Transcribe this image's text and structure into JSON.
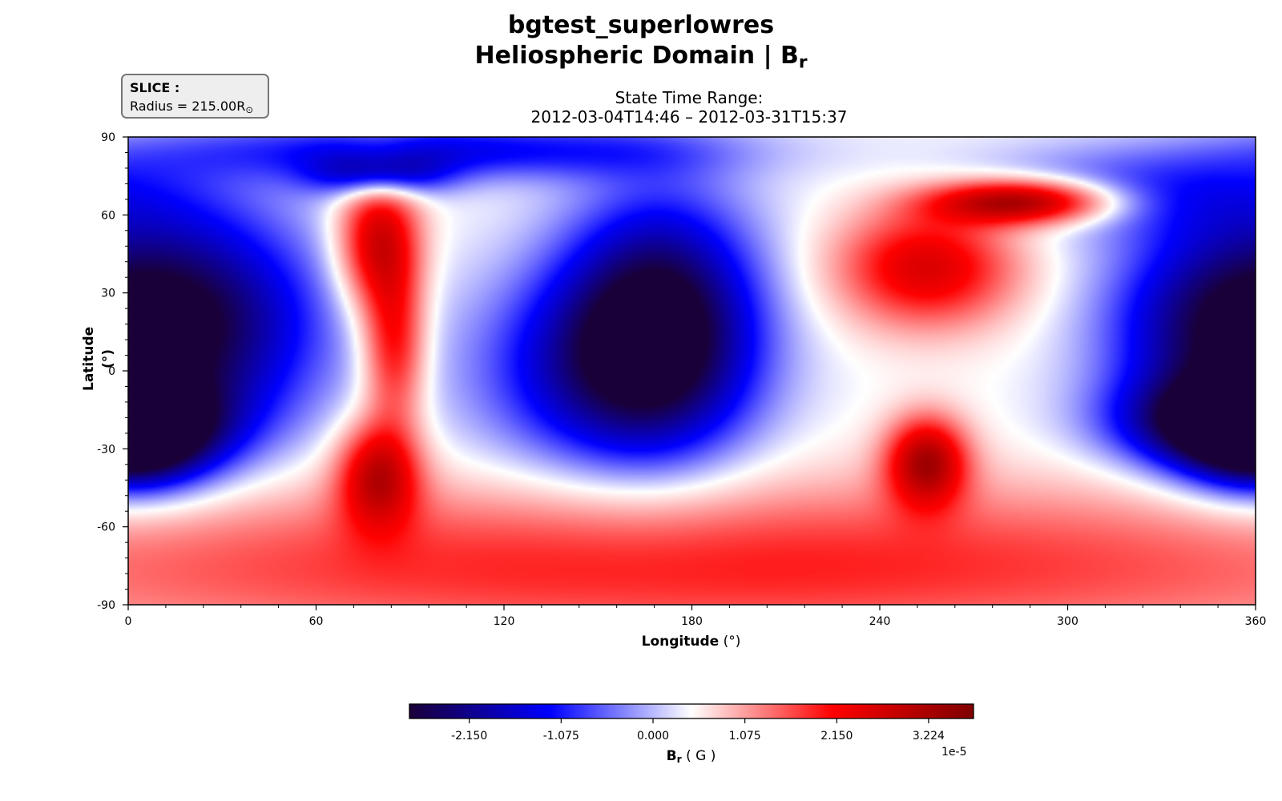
{
  "header": {
    "title_line1": "bgtest_superlowres",
    "title_line2_text": "Heliospheric Domain | B",
    "title_line2_sub": "r",
    "time_range_label": "State Time Range:",
    "time_range_value": "2012-03-04T14:46 – 2012-03-31T15:37"
  },
  "slice_box": {
    "label": "SLICE :",
    "value_text": "Radius = 215.00R",
    "value_sub": "⊙"
  },
  "axes": {
    "xlabel_bold": "Longitude",
    "xlabel_unit": " (°)",
    "ylabel_bold": "Latitude",
    "ylabel_unit": " (°)"
  },
  "colorbar": {
    "label_bold": "B",
    "label_sub": "r",
    "label_unit": " ( G )",
    "exponent_text": "1e-5",
    "tick_labels": [
      "-2.150",
      "-1.075",
      "0.000",
      "1.075",
      "2.150",
      "3.224"
    ],
    "colormap": "seismic",
    "colors": [
      "#1a0038",
      "#0000ff",
      "#ffffff",
      "#ff0000",
      "#7f0000"
    ]
  },
  "chart_data": {
    "type": "heatmap",
    "title": "bgtest_superlowres / Heliospheric Domain | Br",
    "subtitle": "State Time Range: 2012-03-04T14:46 – 2012-03-31T15:37",
    "xlabel": "Longitude (°)",
    "ylabel": "Latitude (°)",
    "xlim": [
      0,
      360
    ],
    "ylim": [
      -90,
      90
    ],
    "xticks": [
      0,
      60,
      120,
      180,
      240,
      300,
      360
    ],
    "yticks": [
      -90,
      -60,
      -30,
      0,
      30,
      60,
      90
    ],
    "xtick_labels": [
      "0",
      "60",
      "120",
      "180",
      "240",
      "300",
      "360"
    ],
    "ytick_labels": [
      "-90",
      "-60",
      "-30",
      "0",
      "30",
      "60",
      "90"
    ],
    "value_unit": "G",
    "value_scale": 1e-05,
    "vmin": -2.85,
    "vmax": 3.75,
    "colorbar_ticks": [
      -2.15,
      -1.075,
      0.0,
      1.075,
      2.15,
      3.224
    ],
    "field_features": [
      {
        "lon": 20,
        "lat": 18,
        "value": -2.6,
        "sigma_lon": 30,
        "sigma_lat": 32
      },
      {
        "lon": 2,
        "lat": -28,
        "value": -2.4,
        "sigma_lon": 18,
        "sigma_lat": 14
      },
      {
        "lon": 170,
        "lat": 20,
        "value": -2.7,
        "sigma_lon": 22,
        "sigma_lat": 34
      },
      {
        "lon": 150,
        "lat": 0,
        "value": -1.6,
        "sigma_lon": 30,
        "sigma_lat": 28
      },
      {
        "lon": 345,
        "lat": 15,
        "value": -1.7,
        "sigma_lon": 25,
        "sigma_lat": 30
      },
      {
        "lon": 350,
        "lat": -20,
        "value": -2.1,
        "sigma_lon": 25,
        "sigma_lat": 12
      },
      {
        "lon": 100,
        "lat": 85,
        "value": -1.5,
        "sigma_lon": 60,
        "sigma_lat": 8
      },
      {
        "lon": 80,
        "lat": 75,
        "value": -1.8,
        "sigma_lon": 15,
        "sigma_lat": 6
      },
      {
        "lon": 320,
        "lat": 70,
        "value": -1.0,
        "sigma_lon": 40,
        "sigma_lat": 12
      },
      {
        "lon": 80,
        "lat": 50,
        "value": 2.6,
        "sigma_lon": 9,
        "sigma_lat": 18
      },
      {
        "lon": 85,
        "lat": 10,
        "value": 2.0,
        "sigma_lon": 7,
        "sigma_lat": 22
      },
      {
        "lon": 80,
        "lat": -40,
        "value": 2.6,
        "sigma_lon": 9,
        "sigma_lat": 14
      },
      {
        "lon": 285,
        "lat": 65,
        "value": 3.5,
        "sigma_lon": 20,
        "sigma_lat": 6
      },
      {
        "lon": 255,
        "lat": 40,
        "value": 2.4,
        "sigma_lon": 20,
        "sigma_lat": 16
      },
      {
        "lon": 255,
        "lat": -35,
        "value": 3.0,
        "sigma_lon": 9,
        "sigma_lat": 12
      },
      {
        "lon": 180,
        "lat": -75,
        "value": 1.7,
        "sigma_lon": 200,
        "sigma_lat": 22
      }
    ]
  }
}
